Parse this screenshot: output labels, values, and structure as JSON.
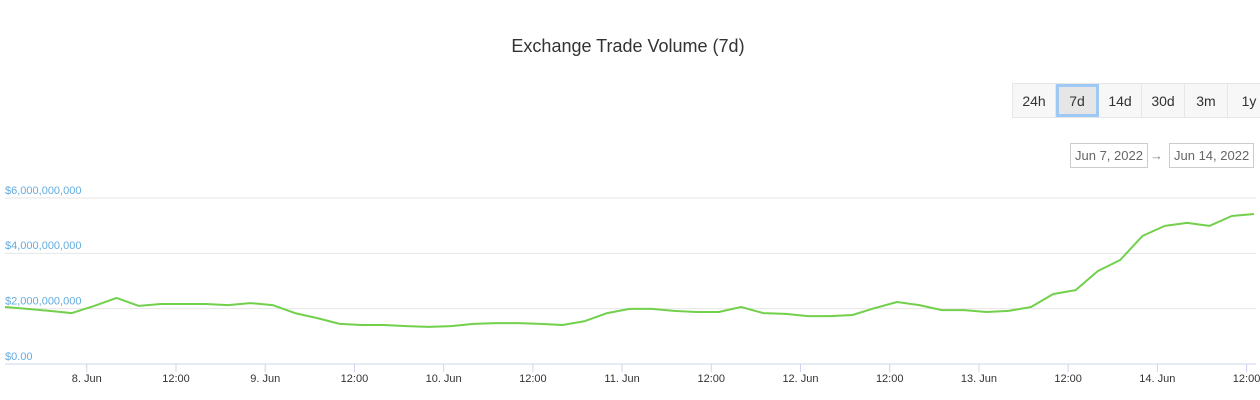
{
  "chart_data": {
    "type": "line",
    "title": "Exchange Trade Volume (7d)",
    "x": [
      "2022-06-07 13:00",
      "2022-06-07 16:00",
      "2022-06-07 19:00",
      "2022-06-07 22:00",
      "2022-06-08 01:00",
      "2022-06-08 04:00",
      "2022-06-08 07:00",
      "2022-06-08 10:00",
      "2022-06-08 13:00",
      "2022-06-08 16:00",
      "2022-06-08 19:00",
      "2022-06-08 22:00",
      "2022-06-09 01:00",
      "2022-06-09 04:00",
      "2022-06-09 07:00",
      "2022-06-09 10:00",
      "2022-06-09 13:00",
      "2022-06-09 16:00",
      "2022-06-09 19:00",
      "2022-06-09 22:00",
      "2022-06-10 01:00",
      "2022-06-10 04:00",
      "2022-06-10 07:00",
      "2022-06-10 10:00",
      "2022-06-10 13:00",
      "2022-06-10 16:00",
      "2022-06-10 19:00",
      "2022-06-10 22:00",
      "2022-06-11 01:00",
      "2022-06-11 04:00",
      "2022-06-11 07:00",
      "2022-06-11 10:00",
      "2022-06-11 13:00",
      "2022-06-11 16:00",
      "2022-06-11 19:00",
      "2022-06-11 22:00",
      "2022-06-12 01:00",
      "2022-06-12 04:00",
      "2022-06-12 07:00",
      "2022-06-12 10:00",
      "2022-06-12 13:00",
      "2022-06-12 16:00",
      "2022-06-12 19:00",
      "2022-06-12 22:00",
      "2022-06-13 01:00",
      "2022-06-13 04:00",
      "2022-06-13 07:00",
      "2022-06-13 10:00",
      "2022-06-13 13:00",
      "2022-06-13 16:00",
      "2022-06-13 19:00",
      "2022-06-13 22:00",
      "2022-06-14 01:00",
      "2022-06-14 04:00",
      "2022-06-14 07:00",
      "2022-06-14 10:00",
      "2022-06-14 13:00"
    ],
    "values": [
      2060000000,
      1990000000,
      1920000000,
      1840000000,
      2100000000,
      2390000000,
      2100000000,
      2170000000,
      2170000000,
      2170000000,
      2130000000,
      2200000000,
      2130000000,
      1840000000,
      1660000000,
      1450000000,
      1410000000,
      1410000000,
      1370000000,
      1340000000,
      1370000000,
      1450000000,
      1480000000,
      1480000000,
      1450000000,
      1410000000,
      1550000000,
      1840000000,
      1990000000,
      1990000000,
      1920000000,
      1880000000,
      1880000000,
      2060000000,
      1840000000,
      1810000000,
      1730000000,
      1730000000,
      1770000000,
      2020000000,
      2240000000,
      2130000000,
      1950000000,
      1950000000,
      1880000000,
      1920000000,
      2060000000,
      2530000000,
      2670000000,
      3360000000,
      3760000000,
      4630000000,
      4990000000,
      5100000000,
      4990000000,
      5350000000,
      5420000000
    ],
    "color": "#72d04c",
    "xlim": [
      "2022-06-07 13:00",
      "2022-06-14 13:00"
    ],
    "xticks": [
      {
        "value": "2022-06-08 00:00",
        "label": "8. Jun"
      },
      {
        "value": "2022-06-08 12:00",
        "label": "12:00"
      },
      {
        "value": "2022-06-09 00:00",
        "label": "9. Jun"
      },
      {
        "value": "2022-06-09 12:00",
        "label": "12:00"
      },
      {
        "value": "2022-06-10 00:00",
        "label": "10. Jun"
      },
      {
        "value": "2022-06-10 12:00",
        "label": "12:00"
      },
      {
        "value": "2022-06-11 00:00",
        "label": "11. Jun"
      },
      {
        "value": "2022-06-11 12:00",
        "label": "12:00"
      },
      {
        "value": "2022-06-12 00:00",
        "label": "12. Jun"
      },
      {
        "value": "2022-06-12 12:00",
        "label": "12:00"
      },
      {
        "value": "2022-06-13 00:00",
        "label": "13. Jun"
      },
      {
        "value": "2022-06-13 12:00",
        "label": "12:00"
      },
      {
        "value": "2022-06-14 00:00",
        "label": "14. Jun"
      },
      {
        "value": "2022-06-14 12:00",
        "label": "12:00"
      }
    ],
    "ylim": [
      0,
      6000000000
    ],
    "yticks": [
      {
        "value": 0,
        "label": "$0.00"
      },
      {
        "value": 2000000000,
        "label": "$2,000,000,000"
      },
      {
        "value": 4000000000,
        "label": "$4,000,000,000"
      },
      {
        "value": 6000000000,
        "label": "$6,000,000,000"
      }
    ],
    "grid": true
  },
  "range_selector": {
    "buttons": [
      "24h",
      "7d",
      "14d",
      "30d",
      "3m",
      "1y"
    ],
    "selected_index": 1
  },
  "date_range": {
    "from": "Jun 7, 2022",
    "separator": "→",
    "to": "Jun 14, 2022"
  }
}
